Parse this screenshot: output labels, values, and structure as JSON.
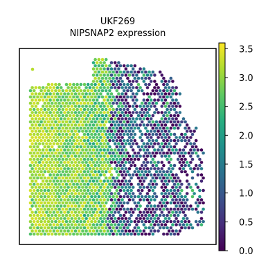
{
  "title_line1": "UKF269",
  "title_line2": "NIPSNAP2 expression",
  "chart_data": {
    "type": "scatter",
    "title": "UKF269\nNIPSNAP2 expression",
    "xlabel": "",
    "ylabel": "",
    "colormap": "viridis",
    "colorbar": {
      "vmin": 0.0,
      "vmax": 3.6,
      "ticks": [
        0.0,
        0.5,
        1.0,
        1.5,
        2.0,
        2.5,
        3.0,
        3.5
      ],
      "tick_labels": [
        "0.0",
        "0.5",
        "1.0",
        "1.5",
        "2.0",
        "2.5",
        "3.0",
        "3.5"
      ]
    },
    "spatial_pattern": [
      {
        "region": "left (high expression)",
        "expression_range": [
          2.4,
          3.4
        ]
      },
      {
        "region": "right (low/mixed expression)",
        "expression_range": [
          0.0,
          1.8
        ]
      }
    ],
    "grid": false,
    "legend": "none"
  }
}
